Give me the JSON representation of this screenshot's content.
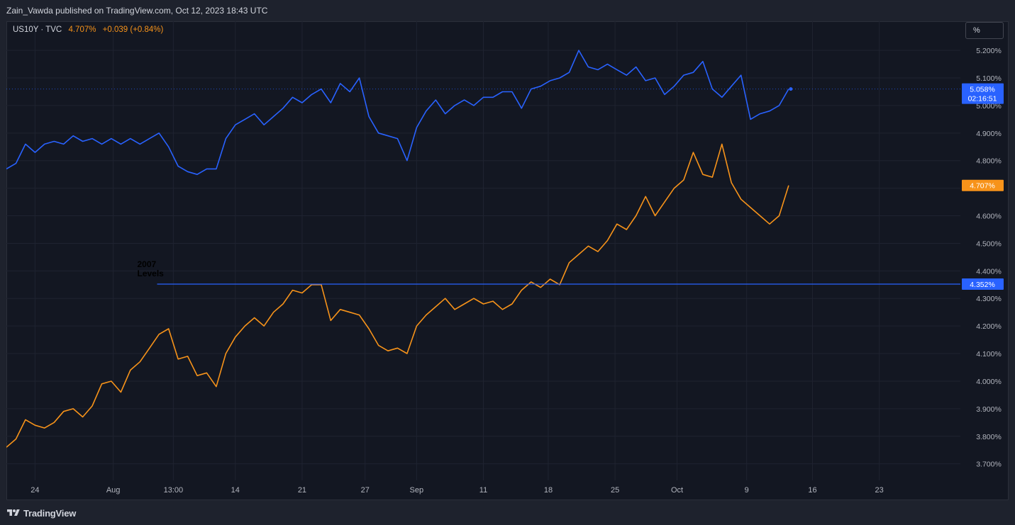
{
  "header": {
    "published_line": "Zain_Vawda published on TradingView.com, Oct 12, 2023 18:43 UTC"
  },
  "legend": {
    "symbol": "US10Y · TVC",
    "last": "4.707%",
    "change": "+0.039 (+0.84%)"
  },
  "unit_button": "%",
  "footer": {
    "brand": "TradingView",
    "logo_icon": "tradingview-logo-icon"
  },
  "colors": {
    "background": "#131722",
    "grid": "#1f2330",
    "blue_series": "#2962ff",
    "orange_series": "#f7931a",
    "axis_text": "#b2b5be"
  },
  "chart_data": {
    "type": "line",
    "ylim": [
      3.64,
      5.28
    ],
    "y_ticks": [
      "5.200%",
      "5.100%",
      "5.000%",
      "4.900%",
      "4.800%",
      "4.700%",
      "4.600%",
      "4.500%",
      "4.400%",
      "4.300%",
      "4.200%",
      "4.100%",
      "4.000%",
      "3.900%",
      "3.800%",
      "3.700%"
    ],
    "y_tick_values": [
      5.2,
      5.1,
      5.0,
      4.9,
      4.8,
      4.7,
      4.6,
      4.5,
      4.4,
      4.3,
      4.2,
      4.1,
      4.0,
      3.9,
      3.8,
      3.7
    ],
    "x_ticks": [
      {
        "label": "24",
        "x": 0.03
      },
      {
        "label": "Aug",
        "x": 0.112
      },
      {
        "label": "13:00",
        "x": 0.175
      },
      {
        "label": "14",
        "x": 0.24
      },
      {
        "label": "21",
        "x": 0.31
      },
      {
        "label": "27",
        "x": 0.376
      },
      {
        "label": "Sep",
        "x": 0.43
      },
      {
        "label": "11",
        "x": 0.5
      },
      {
        "label": "18",
        "x": 0.568
      },
      {
        "label": "25",
        "x": 0.638
      },
      {
        "label": "Oct",
        "x": 0.703
      },
      {
        "label": "9",
        "x": 0.776
      },
      {
        "label": "16",
        "x": 0.845
      },
      {
        "label": "23",
        "x": 0.915
      }
    ],
    "x_range": [
      0,
      1
    ],
    "grid": true,
    "series": [
      {
        "color": "#2962ff",
        "x": [
          0,
          0.01,
          0.02,
          0.03,
          0.04,
          0.05,
          0.06,
          0.07,
          0.08,
          0.09,
          0.1,
          0.11,
          0.12,
          0.13,
          0.14,
          0.15,
          0.16,
          0.17,
          0.18,
          0.19,
          0.2,
          0.21,
          0.22,
          0.23,
          0.24,
          0.25,
          0.26,
          0.27,
          0.28,
          0.29,
          0.3,
          0.31,
          0.32,
          0.33,
          0.34,
          0.35,
          0.36,
          0.37,
          0.38,
          0.39,
          0.4,
          0.41,
          0.42,
          0.43,
          0.44,
          0.45,
          0.46,
          0.47,
          0.48,
          0.49,
          0.5,
          0.51,
          0.52,
          0.53,
          0.54,
          0.55,
          0.56,
          0.57,
          0.58,
          0.59,
          0.6,
          0.61,
          0.62,
          0.63,
          0.64,
          0.65,
          0.66,
          0.67,
          0.68,
          0.69,
          0.7,
          0.71,
          0.72,
          0.73,
          0.74,
          0.75,
          0.76,
          0.77,
          0.78,
          0.79,
          0.8,
          0.81,
          0.82
        ],
        "values": [
          4.77,
          4.79,
          4.86,
          4.83,
          4.86,
          4.87,
          4.86,
          4.89,
          4.87,
          4.88,
          4.86,
          4.88,
          4.86,
          4.88,
          4.86,
          4.88,
          4.9,
          4.85,
          4.78,
          4.76,
          4.75,
          4.77,
          4.77,
          4.88,
          4.93,
          4.95,
          4.97,
          4.93,
          4.96,
          4.99,
          5.03,
          5.01,
          5.04,
          5.06,
          5.01,
          5.08,
          5.05,
          5.1,
          4.96,
          4.9,
          4.89,
          4.88,
          4.8,
          4.92,
          4.98,
          5.02,
          4.97,
          5.0,
          5.02,
          5.0,
          5.03,
          5.03,
          5.05,
          5.05,
          4.99,
          5.06,
          5.07,
          5.09,
          5.1,
          5.12,
          5.2,
          5.14,
          5.13,
          5.15,
          5.13,
          5.11,
          5.14,
          5.09,
          5.1,
          5.04,
          5.07,
          5.11,
          5.12,
          5.16,
          5.06,
          5.03,
          5.07,
          5.11,
          4.95,
          4.97,
          4.98,
          5.0,
          5.06
        ]
      },
      {
        "color": "#f7931a",
        "x": [
          0,
          0.01,
          0.02,
          0.03,
          0.04,
          0.05,
          0.06,
          0.07,
          0.08,
          0.09,
          0.1,
          0.11,
          0.12,
          0.13,
          0.14,
          0.15,
          0.16,
          0.17,
          0.18,
          0.19,
          0.2,
          0.21,
          0.22,
          0.23,
          0.24,
          0.25,
          0.26,
          0.27,
          0.28,
          0.29,
          0.3,
          0.31,
          0.32,
          0.33,
          0.34,
          0.35,
          0.36,
          0.37,
          0.38,
          0.39,
          0.4,
          0.41,
          0.42,
          0.43,
          0.44,
          0.45,
          0.46,
          0.47,
          0.48,
          0.49,
          0.5,
          0.51,
          0.52,
          0.53,
          0.54,
          0.55,
          0.56,
          0.57,
          0.58,
          0.59,
          0.6,
          0.61,
          0.62,
          0.63,
          0.64,
          0.65,
          0.66,
          0.67,
          0.68,
          0.69,
          0.7,
          0.71,
          0.72,
          0.73,
          0.74,
          0.75,
          0.76,
          0.77,
          0.78,
          0.79,
          0.8,
          0.81,
          0.82
        ],
        "values": [
          3.76,
          3.79,
          3.86,
          3.84,
          3.83,
          3.85,
          3.89,
          3.9,
          3.87,
          3.91,
          3.99,
          4.0,
          3.96,
          4.04,
          4.07,
          4.12,
          4.17,
          4.19,
          4.08,
          4.09,
          4.02,
          4.03,
          3.98,
          4.1,
          4.16,
          4.2,
          4.23,
          4.2,
          4.25,
          4.28,
          4.33,
          4.32,
          4.35,
          4.35,
          4.22,
          4.26,
          4.25,
          4.24,
          4.19,
          4.13,
          4.11,
          4.12,
          4.1,
          4.2,
          4.24,
          4.27,
          4.3,
          4.26,
          4.28,
          4.3,
          4.28,
          4.29,
          4.26,
          4.28,
          4.33,
          4.36,
          4.34,
          4.37,
          4.35,
          4.43,
          4.46,
          4.49,
          4.47,
          4.51,
          4.57,
          4.55,
          4.6,
          4.67,
          4.6,
          4.65,
          4.7,
          4.73,
          4.83,
          4.75,
          4.74,
          4.86,
          4.72,
          4.66,
          4.63,
          4.6,
          4.57,
          4.6,
          4.71
        ]
      }
    ],
    "blue_price_label": "5.058%",
    "blue_countdown": "02:16:51",
    "orange_price_label": "4.707%",
    "hline": {
      "value": 4.352,
      "label": "4.352%",
      "start_x": 0.158
    },
    "annotation": {
      "text_line1": "2007",
      "text_line2": "Levels"
    }
  }
}
